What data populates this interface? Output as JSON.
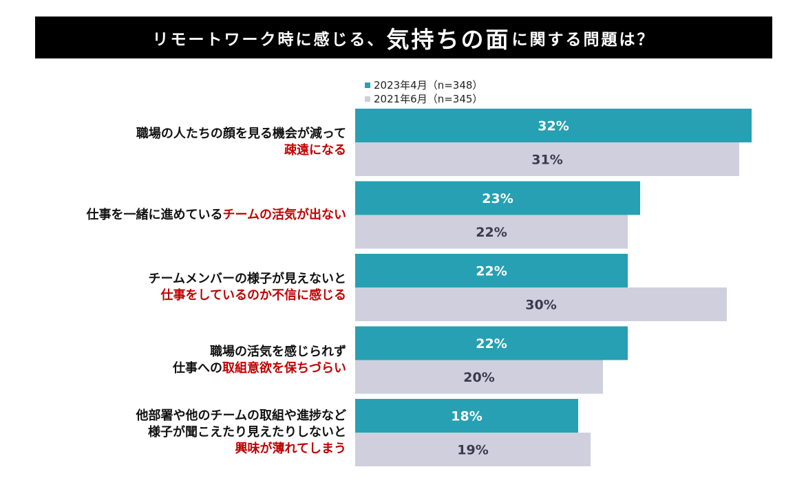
{
  "title": {
    "part1": "リモートワーク時に感じる、",
    "emphasis": "気持ちの面",
    "part2": "に関する問題は？"
  },
  "colors": {
    "series_2023": "#27a0b3",
    "series_2021": "#cfcfde",
    "highlight": "#c00000",
    "label_on_dark": "#ffffff",
    "label_on_light": "#3a3a4a"
  },
  "chart_data": {
    "type": "bar",
    "orientation": "horizontal",
    "title": "リモートワーク時に感じる、気持ちの面に関する問題は？",
    "categories": [
      {
        "lines": [
          [
            {
              "text": "職場の人たちの顔を見る機会が減って",
              "hl": false
            }
          ],
          [
            {
              "text": "疎遠になる",
              "hl": true
            }
          ]
        ]
      },
      {
        "lines": [
          [
            {
              "text": "仕事を一緒に進めている",
              "hl": false
            },
            {
              "text": "チームの活気が出ない",
              "hl": true
            }
          ]
        ]
      },
      {
        "lines": [
          [
            {
              "text": "チームメンバーの様子が見えないと",
              "hl": false
            }
          ],
          [
            {
              "text": "仕事をしているのか不信に感じる",
              "hl": true
            }
          ]
        ]
      },
      {
        "lines": [
          [
            {
              "text": "職場の活気を感じられず",
              "hl": false
            }
          ],
          [
            {
              "text": "仕事への",
              "hl": false
            },
            {
              "text": "取組意欲を保ちづらい",
              "hl": true
            }
          ]
        ]
      },
      {
        "lines": [
          [
            {
              "text": "他部署や他のチームの取組や進捗など",
              "hl": false
            }
          ],
          [
            {
              "text": "様子が聞こえたり見えたりしないと",
              "hl": false
            }
          ],
          [
            {
              "text": "興味が薄れてしまう",
              "hl": true
            }
          ]
        ]
      }
    ],
    "series": [
      {
        "name": "2023年4月（n=348）",
        "values": [
          32,
          23,
          22,
          22,
          18
        ]
      },
      {
        "name": "2021年6月（n=345）",
        "values": [
          31,
          22,
          30,
          20,
          19
        ]
      }
    ],
    "value_suffix": "%",
    "xlim": [
      0,
      33
    ]
  }
}
